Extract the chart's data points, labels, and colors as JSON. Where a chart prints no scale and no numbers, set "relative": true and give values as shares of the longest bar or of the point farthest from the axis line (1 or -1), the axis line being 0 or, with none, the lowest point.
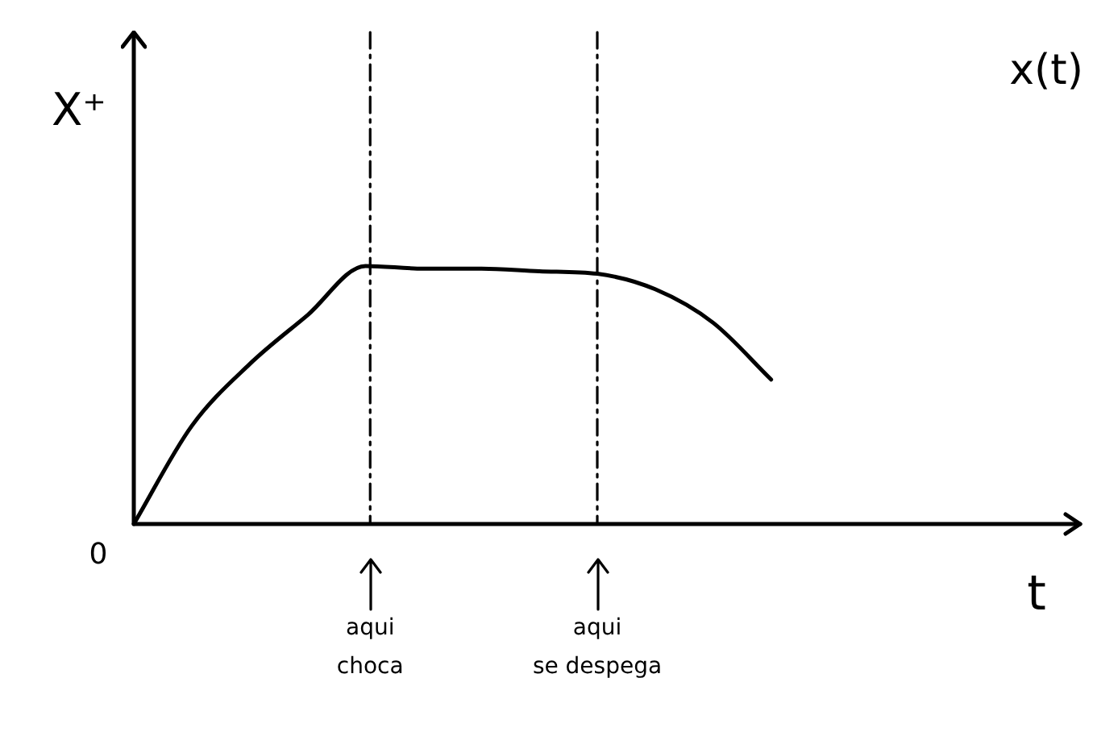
{
  "chart_data": {
    "type": "line",
    "title": "x(t)",
    "xlabel": "t",
    "ylabel": "X⁺",
    "relative": true,
    "marker": "none",
    "line_style": "solid",
    "categories": [
      null,
      null,
      null,
      null,
      null,
      null,
      null,
      null,
      null,
      null,
      null,
      null,
      null,
      null,
      null,
      null,
      null
    ],
    "series": [
      {
        "color": "#000000",
        "values": [
          0,
          0.38,
          0.62,
          0.81,
          1,
          0.99,
          0.99,
          0.98,
          0.97,
          0.91,
          0.78,
          0.56,
          null,
          null,
          null,
          null,
          null
        ]
      }
    ],
    "annotations": [
      "0",
      "aqui choca",
      "aqui se despega"
    ]
  }
}
